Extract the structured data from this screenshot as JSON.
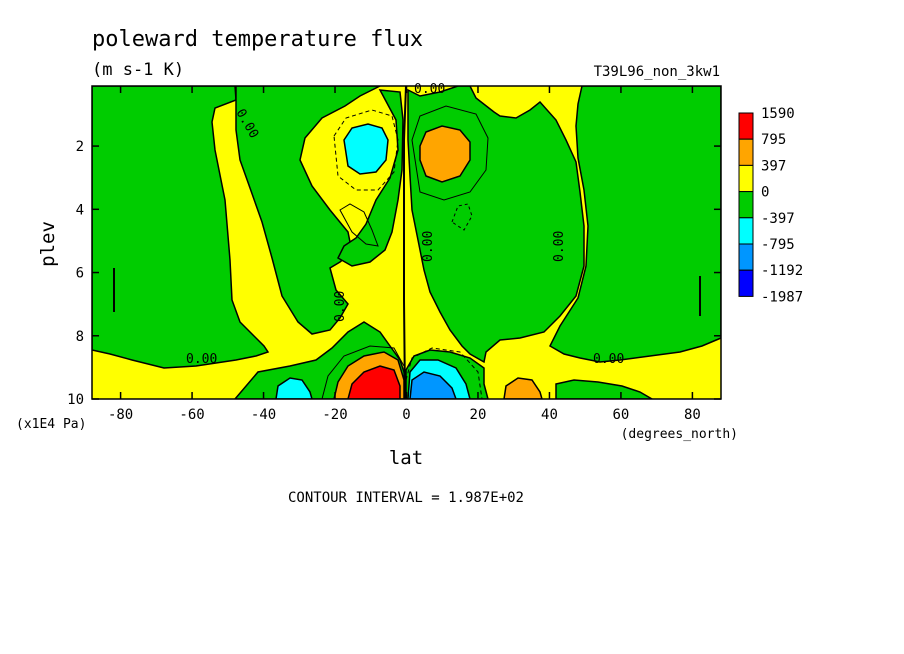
{
  "chart_data": {
    "type": "heatmap",
    "title": "poleward temperature flux",
    "subtitle": "(m s-1 K)",
    "dataset_label": "T39L96_non_3kw1",
    "xlabel": "lat",
    "x_unit_label": "(degrees_north)",
    "ylabel": "plev",
    "y_unit_label": "(x1E4 Pa)",
    "xlim": [
      -88,
      88
    ],
    "ylim": [
      10,
      0.1
    ],
    "x_ticks": [
      -80,
      -60,
      -40,
      -20,
      0,
      20,
      40,
      60,
      80
    ],
    "x_tick_labels": [
      "-80",
      "-60",
      "-40",
      "-20",
      "0",
      "20",
      "40",
      "60",
      "80"
    ],
    "y_ticks": [
      2,
      4,
      6,
      8,
      10
    ],
    "y_tick_labels": [
      "2",
      "4",
      "6",
      "8",
      "10"
    ],
    "contour_interval_text": "CONTOUR INTERVAL = 1.987E+02",
    "contour_labels": [
      "0.00",
      "0.00",
      "0.00",
      "0.00",
      "0.00",
      "0.00",
      "0.00"
    ],
    "colorbar": {
      "levels": [
        "1590",
        "795",
        "397",
        "0",
        "-397",
        "-795",
        "-1192",
        "-1987"
      ],
      "colors": [
        "#ff0000",
        "#ffa500",
        "#ffff00",
        "#00cc00",
        "#00ffff",
        "#0096ff",
        "#0000ff"
      ]
    },
    "regions": [
      {
        "name": "south-polar-green",
        "value_range": [
          -397,
          0
        ]
      },
      {
        "name": "north-polar-green",
        "value_range": [
          -397,
          0
        ]
      },
      {
        "name": "upper-south-cyan-min",
        "center": [
          -10,
          2.1
        ],
        "value_range": [
          -795,
          -397
        ]
      },
      {
        "name": "upper-north-orange-max",
        "center": [
          12,
          2.3
        ],
        "value_range": [
          397,
          795
        ]
      },
      {
        "name": "lower-south-red-max",
        "center": [
          -6,
          9.6
        ],
        "value_range": [
          795,
          1590
        ]
      },
      {
        "name": "lower-north-blue-min",
        "center": [
          6,
          9.6
        ],
        "value_range": [
          -1192,
          -795
        ]
      },
      {
        "name": "lower-south-cyan",
        "center": [
          -31,
          9.7
        ],
        "value_range": [
          -795,
          -397
        ]
      },
      {
        "name": "lower-north-orange",
        "center": [
          32,
          9.7
        ],
        "value_range": [
          397,
          795
        ]
      }
    ]
  }
}
